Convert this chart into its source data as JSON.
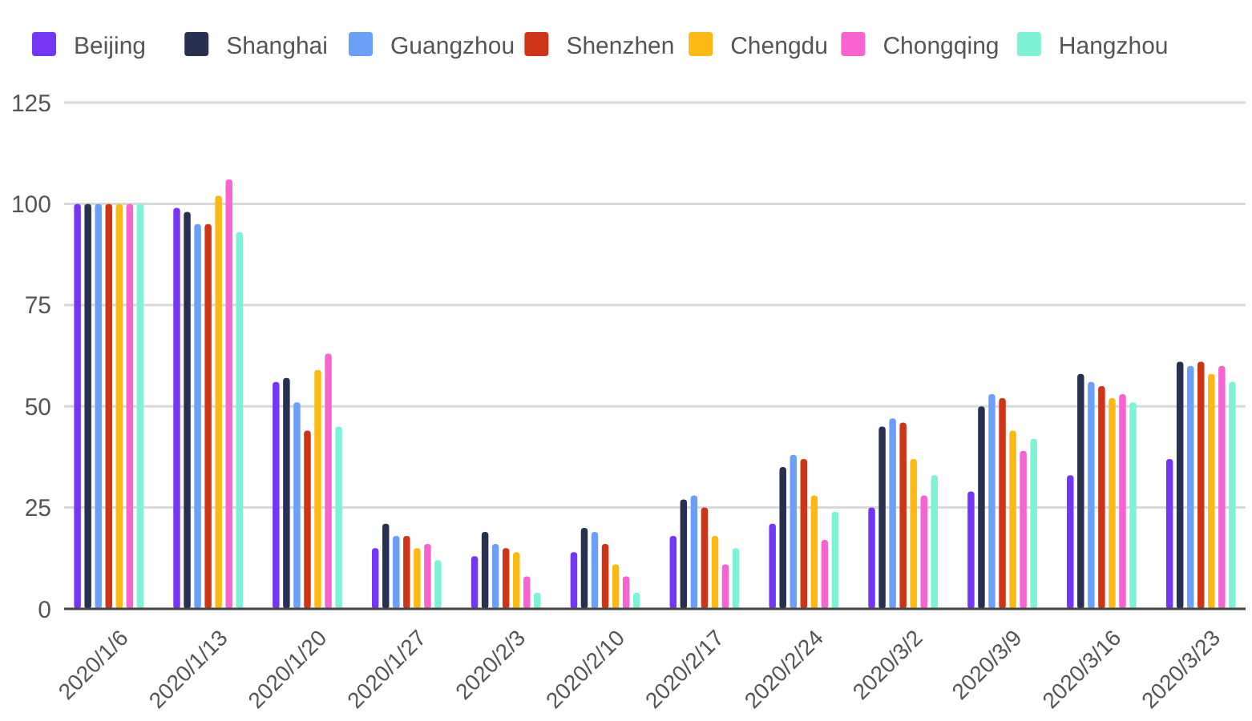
{
  "chart_data": {
    "type": "bar",
    "categories": [
      "2020/1/6",
      "2020/1/13",
      "2020/1/20",
      "2020/1/27",
      "2020/2/3",
      "2020/2/10",
      "2020/2/17",
      "2020/2/24",
      "2020/3/2",
      "2020/3/9",
      "2020/3/16",
      "2020/3/23"
    ],
    "series": [
      {
        "name": "Beijing",
        "color": "#7535f5",
        "values": [
          100,
          99,
          56,
          15,
          13,
          14,
          18,
          21,
          25,
          29,
          33,
          37
        ]
      },
      {
        "name": "Shanghai",
        "color": "#27314f",
        "values": [
          100,
          98,
          57,
          21,
          19,
          20,
          27,
          35,
          45,
          50,
          58,
          61
        ]
      },
      {
        "name": "Guangzhou",
        "color": "#6aa0f8",
        "values": [
          100,
          95,
          51,
          18,
          16,
          19,
          28,
          38,
          47,
          53,
          56,
          60
        ]
      },
      {
        "name": "Shenzhen",
        "color": "#cf3416",
        "values": [
          100,
          95,
          44,
          18,
          15,
          16,
          25,
          37,
          46,
          52,
          55,
          61
        ]
      },
      {
        "name": "Chengdu",
        "color": "#fdb913",
        "values": [
          100,
          102,
          59,
          15,
          14,
          11,
          18,
          28,
          37,
          44,
          52,
          58
        ]
      },
      {
        "name": "Chongqing",
        "color": "#f763d0",
        "values": [
          100,
          106,
          63,
          16,
          8,
          8,
          11,
          17,
          28,
          39,
          53,
          60
        ]
      },
      {
        "name": "Hangzhou",
        "color": "#7df2d6",
        "values": [
          100,
          93,
          45,
          12,
          4,
          4,
          15,
          24,
          33,
          42,
          51,
          56
        ]
      }
    ],
    "ylim": [
      0,
      125
    ],
    "yticks": [
      0,
      25,
      50,
      75,
      100,
      125
    ],
    "grid": "y",
    "legend": "top"
  }
}
